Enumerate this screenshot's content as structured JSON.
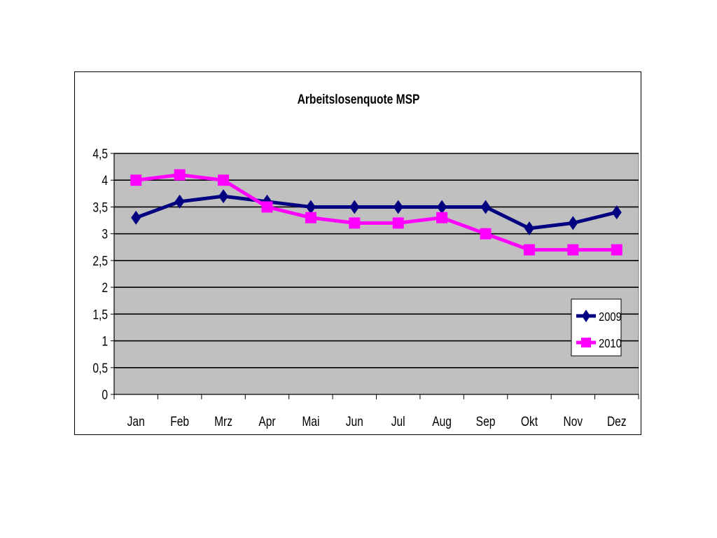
{
  "chart_data": {
    "type": "line",
    "title": "Arbeitslosenquote MSP",
    "xlabel": "",
    "ylabel": "",
    "categories": [
      "Jan",
      "Feb",
      "Mrz",
      "Apr",
      "Mai",
      "Jun",
      "Jul",
      "Aug",
      "Sep",
      "Okt",
      "Nov",
      "Dez"
    ],
    "ylim": [
      0,
      4.5
    ],
    "yticks": [
      "0",
      "0,5",
      "1",
      "1,5",
      "2",
      "2,5",
      "3",
      "3,5",
      "4",
      "4,5"
    ],
    "grid": true,
    "legend_position": "bottom-right",
    "plot_background": "#c0c0c0",
    "series": [
      {
        "name": "2009",
        "marker": "diamond",
        "color": "#000080",
        "values": [
          3.3,
          3.6,
          3.7,
          3.6,
          3.5,
          3.5,
          3.5,
          3.5,
          3.5,
          3.1,
          3.2,
          3.4
        ]
      },
      {
        "name": "2010",
        "marker": "square",
        "color": "#ff00ff",
        "values": [
          4.0,
          4.1,
          4.0,
          3.5,
          3.3,
          3.2,
          3.2,
          3.3,
          3.0,
          2.7,
          2.7,
          2.7
        ]
      }
    ]
  }
}
